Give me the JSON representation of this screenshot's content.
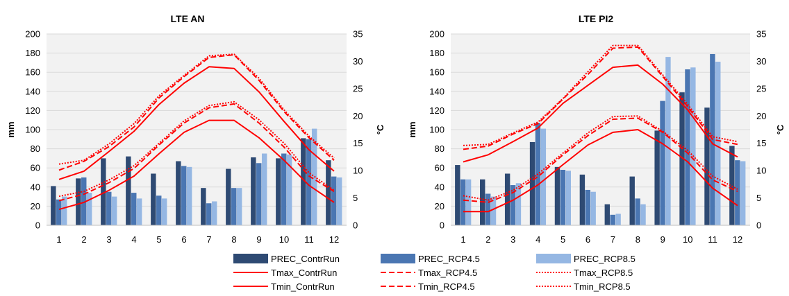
{
  "colors": {
    "prec_contr": "#2e4a73",
    "prec_rcp45": "#4a76b2",
    "prec_rcp85": "#95b7e3",
    "temp": "#ff0000",
    "plot_bg": "#f2f2f2",
    "grid": "#d9d9d9"
  },
  "legend": [
    {
      "label": "PREC_ContrRun",
      "kind": "bar",
      "color": "prec_contr"
    },
    {
      "label": "PREC_RCP4.5",
      "kind": "bar",
      "color": "prec_rcp45"
    },
    {
      "label": "PREC_RCP8.5",
      "kind": "bar",
      "color": "prec_rcp85"
    },
    {
      "label": "Tmax_ContrRun",
      "kind": "line",
      "style": "solid"
    },
    {
      "label": "Tmax_RCP4.5",
      "kind": "line",
      "style": "dashed"
    },
    {
      "label": "Tmax_RCP8.5",
      "kind": "line",
      "style": "dotted"
    },
    {
      "label": "Tmin_ContrRun",
      "kind": "line",
      "style": "solid"
    },
    {
      "label": "Tmin_RCP4.5",
      "kind": "line",
      "style": "dashed"
    },
    {
      "label": "Tmin_RCP8.5",
      "kind": "line",
      "style": "dotted"
    }
  ],
  "chart_data": [
    {
      "type": "bar",
      "title": "LTE AN",
      "ylabel": "mm",
      "y2label": "°C",
      "categories": [
        "1",
        "2",
        "3",
        "4",
        "5",
        "6",
        "7",
        "8",
        "9",
        "10",
        "11",
        "12"
      ],
      "ylim": [
        0,
        200
      ],
      "y2lim": [
        0,
        35
      ],
      "yticks": [
        0,
        20,
        40,
        60,
        80,
        100,
        120,
        140,
        160,
        180,
        200
      ],
      "y2ticks": [
        0,
        5,
        10,
        15,
        20,
        25,
        30,
        35
      ],
      "grid": true,
      "bar_series": [
        {
          "name": "PREC_ContrRun",
          "values": [
            41,
            49,
            70,
            72,
            54,
            67,
            39,
            59,
            71,
            70,
            91,
            68
          ]
        },
        {
          "name": "PREC_RCP4.5",
          "values": [
            27,
            50,
            35,
            34,
            31,
            62,
            23,
            39,
            65,
            75,
            90,
            51
          ]
        },
        {
          "name": "PREC_RCP8.5",
          "values": [
            30,
            34,
            30,
            28,
            28,
            61,
            25,
            39,
            75,
            74,
            101,
            50
          ]
        }
      ],
      "line_series": [
        {
          "name": "Tmax_ContrRun",
          "style": "solid",
          "values": [
            8.4,
            9.9,
            13.5,
            17.2,
            22.1,
            26.0,
            29.0,
            28.7,
            24.4,
            19.0,
            13.8,
            9.9
          ]
        },
        {
          "name": "Tmax_RCP4.5",
          "style": "dashed",
          "values": [
            10.1,
            11.7,
            14.4,
            18.0,
            23.3,
            27.2,
            30.7,
            31.2,
            26.5,
            20.8,
            16.0,
            11.9
          ]
        },
        {
          "name": "Tmax_RCP8.5",
          "style": "dotted",
          "values": [
            11.2,
            11.9,
            14.9,
            18.6,
            23.7,
            27.4,
            31.0,
            31.3,
            26.9,
            21.1,
            16.3,
            12.3
          ]
        },
        {
          "name": "Tmin_ContrRun",
          "style": "solid",
          "values": [
            2.9,
            4.2,
            6.4,
            9.0,
            13.1,
            17.0,
            19.2,
            19.2,
            16.0,
            11.9,
            7.3,
            4.2
          ]
        },
        {
          "name": "Tmin_RCP4.5",
          "style": "dashed",
          "values": [
            4.5,
            5.7,
            7.8,
            10.4,
            14.7,
            18.7,
            21.5,
            22.2,
            18.7,
            14.3,
            9.0,
            6.2
          ]
        },
        {
          "name": "Tmin_RCP8.5",
          "style": "dotted",
          "values": [
            5.3,
            6.2,
            8.3,
            10.9,
            15.0,
            19.1,
            21.9,
            22.6,
            19.3,
            15.0,
            9.6,
            6.4
          ]
        }
      ]
    },
    {
      "type": "bar",
      "title": "LTE PI2",
      "ylabel": "mm",
      "y2label": "°C",
      "categories": [
        "1",
        "2",
        "3",
        "4",
        "5",
        "6",
        "7",
        "8",
        "9",
        "10",
        "11",
        "12"
      ],
      "ylim": [
        0,
        200
      ],
      "y2lim": [
        0,
        35
      ],
      "yticks": [
        0,
        20,
        40,
        60,
        80,
        100,
        120,
        140,
        160,
        180,
        200
      ],
      "y2ticks": [
        0,
        5,
        10,
        15,
        20,
        25,
        30,
        35
      ],
      "grid": true,
      "bar_series": [
        {
          "name": "PREC_ContrRun",
          "values": [
            63,
            48,
            54,
            87,
            61,
            53,
            22,
            51,
            99,
            139,
            123,
            83
          ]
        },
        {
          "name": "PREC_RCP4.5",
          "values": [
            48,
            33,
            42,
            107,
            58,
            37,
            11,
            28,
            130,
            163,
            179,
            68
          ]
        },
        {
          "name": "PREC_RCP8.5",
          "values": [
            48,
            30,
            44,
            101,
            57,
            35,
            12,
            22,
            176,
            165,
            171,
            67
          ]
        }
      ],
      "line_series": [
        {
          "name": "Tmax_ContrRun",
          "style": "solid",
          "values": [
            11.6,
            12.9,
            15.3,
            17.8,
            22.3,
            25.6,
            28.9,
            29.3,
            25.8,
            21.1,
            14.9,
            12.5
          ]
        },
        {
          "name": "Tmax_RCP4.5",
          "style": "dashed",
          "values": [
            13.9,
            14.5,
            16.7,
            18.6,
            23.1,
            27.6,
            32.4,
            32.6,
            27.2,
            21.7,
            15.7,
            14.8
          ]
        },
        {
          "name": "Tmax_RCP8.5",
          "style": "dotted",
          "values": [
            14.6,
            14.8,
            16.9,
            18.9,
            23.2,
            28.1,
            32.9,
            32.9,
            27.5,
            22.1,
            16.2,
            15.3
          ]
        },
        {
          "name": "Tmin_ContrRun",
          "style": "solid",
          "values": [
            2.5,
            2.5,
            4.6,
            7.4,
            11.1,
            14.7,
            17.0,
            17.5,
            14.9,
            11.6,
            6.8,
            3.6
          ]
        },
        {
          "name": "Tmin_RCP4.5",
          "style": "dashed",
          "values": [
            4.6,
            4.2,
            6.0,
            8.9,
            12.9,
            16.4,
            19.4,
            19.6,
            17.0,
            13.2,
            8.3,
            6.2
          ]
        },
        {
          "name": "Tmin_RCP8.5",
          "style": "dotted",
          "values": [
            5.4,
            4.6,
            6.4,
            9.4,
            13.2,
            16.9,
            19.9,
            20.0,
            17.2,
            13.7,
            9.0,
            6.6
          ]
        }
      ]
    }
  ]
}
